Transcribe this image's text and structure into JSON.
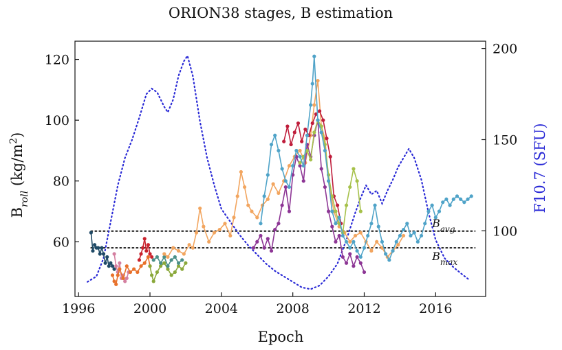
{
  "chart_data": {
    "type": "line",
    "title": "ORION38 stages, B estimation",
    "xlabel": "Epoch",
    "ylabel": "B_roll (kg/m^2)",
    "ylabel_parts": {
      "main": "B",
      "sub": "roll",
      "unit_open": " (kg/m",
      "unit_sup": "2",
      "unit_close": ")"
    },
    "y2label": "F10.7 (SFU)",
    "xlim": [
      1995.8,
      2018.8
    ],
    "ylim": [
      42,
      126
    ],
    "y2lim": [
      64,
      204
    ],
    "x_ticks": [
      1996,
      2000,
      2004,
      2008,
      2012,
      2016
    ],
    "x_tick_labels": [
      "1996",
      "2000",
      "2004",
      "2008",
      "2012",
      "2016"
    ],
    "y_ticks": [
      60,
      80,
      100,
      120
    ],
    "y_tick_labels": [
      "60",
      "80",
      "100",
      "120"
    ],
    "y2_ticks": [
      100,
      150,
      200
    ],
    "y2_tick_labels": [
      "100",
      "150",
      "200"
    ],
    "colors": {
      "f107": "#2a2ad6",
      "y2label": "#2a2ad6",
      "refline": "#111111"
    },
    "ref_lines": [
      {
        "name": "B_avg",
        "y": 63.5,
        "label_main": "B",
        "label_sub": "avg"
      },
      {
        "name": "B_max",
        "y": 58.0,
        "label_main": "B",
        "label_sub": "max"
      }
    ],
    "f107": {
      "name": "F10.7 (SFU)",
      "x": [
        1996.5,
        1997.0,
        1997.4,
        1997.8,
        1998.2,
        1998.6,
        1999.0,
        1999.4,
        1999.8,
        2000.1,
        2000.4,
        2000.8,
        2001.0,
        2001.3,
        2001.6,
        2001.9,
        2002.1,
        2002.4,
        2002.8,
        2003.2,
        2003.6,
        2004.0,
        2004.5,
        2005.0,
        2005.5,
        2006.0,
        2006.5,
        2007.0,
        2007.5,
        2008.0,
        2008.5,
        2009.0,
        2009.5,
        2010.0,
        2010.5,
        2011.0,
        2011.5,
        2011.8,
        2012.1,
        2012.4,
        2012.7,
        2013.0,
        2013.3,
        2013.6,
        2013.9,
        2014.2,
        2014.5,
        2014.8,
        2015.2,
        2015.6,
        2016.0,
        2016.5,
        2017.0,
        2017.5,
        2017.9
      ],
      "values": [
        72,
        75,
        85,
        105,
        125,
        140,
        150,
        162,
        175,
        178,
        176,
        168,
        165,
        172,
        185,
        193,
        196,
        185,
        160,
        140,
        125,
        112,
        105,
        98,
        92,
        87,
        82,
        78,
        75,
        72,
        69,
        68,
        70,
        75,
        82,
        95,
        110,
        118,
        125,
        120,
        122,
        115,
        122,
        128,
        135,
        140,
        145,
        140,
        128,
        110,
        95,
        85,
        80,
        76,
        73
      ]
    },
    "series": [
      {
        "name": "stage-dark-navy",
        "color": "#1f4a66",
        "x": [
          1996.7,
          1996.8,
          1996.9,
          1997.0,
          1997.1,
          1997.2,
          1997.3,
          1997.4,
          1997.5,
          1997.6,
          1997.7,
          1997.8,
          1997.9,
          1998.0
        ],
        "values": [
          63,
          57,
          59,
          58,
          58,
          56,
          58,
          56,
          53,
          55,
          52,
          53,
          52,
          51
        ]
      },
      {
        "name": "stage-pink",
        "color": "#d47fa0",
        "x": [
          1998.0,
          1998.1,
          1998.2,
          1998.3,
          1998.4,
          1998.5,
          1998.6,
          1998.7,
          1998.8
        ],
        "values": [
          56,
          52,
          50,
          53,
          48,
          49,
          47,
          48,
          50
        ]
      },
      {
        "name": "stage-orange",
        "color": "#e8712b",
        "x": [
          1997.9,
          1998.0,
          1998.1,
          1998.2,
          1998.3,
          1998.5,
          1998.7,
          1998.9,
          1999.1,
          1999.3,
          1999.5,
          1999.7,
          1999.9,
          2000.0
        ],
        "values": [
          49,
          47,
          46,
          49,
          51,
          48,
          52,
          50,
          51,
          50,
          52,
          53,
          55,
          52
        ]
      },
      {
        "name": "stage-red",
        "color": "#c9232d",
        "x": [
          1999.4,
          1999.5,
          1999.6,
          1999.7,
          1999.8,
          1999.9,
          2000.0,
          2000.1
        ],
        "values": [
          54,
          56,
          58,
          61,
          57,
          59,
          56,
          55
        ]
      },
      {
        "name": "stage-olive",
        "color": "#8aa83a",
        "x": [
          2000.0,
          2000.1,
          2000.2,
          2000.4,
          2000.6,
          2000.8,
          2001.0,
          2001.2,
          2001.4,
          2001.6,
          2001.8,
          2002.0
        ],
        "values": [
          52,
          49,
          47,
          50,
          52,
          53,
          51,
          49,
          50,
          52,
          51,
          53
        ]
      },
      {
        "name": "stage-teal",
        "color": "#4a8f88",
        "x": [
          2000.2,
          2000.4,
          2000.6,
          2000.8,
          2001.0,
          2001.2,
          2001.4,
          2001.6,
          2001.8
        ],
        "values": [
          54,
          55,
          53,
          55,
          52,
          54,
          55,
          53,
          54
        ]
      },
      {
        "name": "stage-peach",
        "color": "#f2a55f",
        "x": [
          2000.8,
          2001.0,
          2001.3,
          2001.6,
          2001.9,
          2002.2,
          2002.4,
          2002.6,
          2002.8,
          2003.0,
          2003.3,
          2003.6,
          2003.9,
          2004.2,
          2004.5,
          2004.7,
          2004.9,
          2005.1,
          2005.3,
          2005.5,
          2005.7,
          2006.0,
          2006.3,
          2006.6,
          2006.9,
          2007.2,
          2007.5,
          2007.8,
          2008.1,
          2008.4,
          2008.7,
          2009.0,
          2009.2,
          2009.4,
          2009.6,
          2009.8,
          2010.0,
          2010.3,
          2010.6,
          2010.9,
          2011.2,
          2011.5,
          2011.8,
          2012.1,
          2012.4,
          2012.7,
          2013.0,
          2013.3,
          2013.6,
          2013.9,
          2014.2
        ],
        "values": [
          56,
          55,
          58,
          57,
          56,
          59,
          58,
          63,
          71,
          65,
          60,
          63,
          64,
          66,
          62,
          68,
          75,
          83,
          78,
          72,
          70,
          68,
          72,
          74,
          79,
          76,
          80,
          85,
          88,
          90,
          86,
          95,
          105,
          113,
          98,
          94,
          80,
          70,
          65,
          63,
          60,
          62,
          63,
          60,
          57,
          60,
          58,
          55,
          57,
          59,
          62
        ]
      },
      {
        "name": "stage-purple",
        "color": "#8d3695",
        "x": [
          2005.8,
          2006.0,
          2006.2,
          2006.4,
          2006.6,
          2006.8,
          2007.0,
          2007.2,
          2007.4,
          2007.6,
          2007.8,
          2008.0,
          2008.2,
          2008.4,
          2008.6,
          2008.8,
          2009.0,
          2009.2,
          2009.4,
          2009.6,
          2009.8,
          2010.0,
          2010.2,
          2010.4,
          2010.6,
          2010.8,
          2011.0,
          2011.2,
          2011.4,
          2011.6,
          2011.8,
          2012.0
        ],
        "values": [
          58,
          60,
          62,
          58,
          61,
          57,
          64,
          66,
          72,
          78,
          70,
          82,
          88,
          85,
          80,
          92,
          88,
          95,
          100,
          84,
          78,
          70,
          65,
          60,
          62,
          55,
          53,
          56,
          52,
          55,
          53,
          50
        ]
      },
      {
        "name": "stage-crimson",
        "color": "#bf1d3b",
        "x": [
          2007.5,
          2007.7,
          2007.9,
          2008.1,
          2008.3,
          2008.5,
          2008.7,
          2008.9,
          2009.1,
          2009.3,
          2009.5,
          2009.7,
          2009.9,
          2010.1,
          2010.3,
          2010.5,
          2010.7
        ],
        "values": [
          93,
          98,
          92,
          96,
          99,
          93,
          97,
          95,
          99,
          102,
          103,
          100,
          94,
          88,
          75,
          72,
          66
        ]
      },
      {
        "name": "stage-light-green",
        "color": "#a6c14a",
        "x": [
          2008.4,
          2008.6,
          2008.8,
          2009.0,
          2009.2,
          2009.4,
          2009.6,
          2009.8,
          2010.0,
          2010.2,
          2010.4,
          2010.6,
          2010.8,
          2011.0,
          2011.2,
          2011.4,
          2011.6,
          2011.8
        ],
        "values": [
          86,
          88,
          90,
          87,
          96,
          100,
          98,
          92,
          82,
          75,
          70,
          66,
          63,
          72,
          78,
          84,
          80,
          70
        ]
      },
      {
        "name": "stage-sky-blue",
        "color": "#4fa3c8",
        "x": [
          2006.2,
          2006.4,
          2006.6,
          2006.8,
          2007.0,
          2007.2,
          2007.4,
          2007.6,
          2007.8,
          2008.0,
          2008.2,
          2008.4,
          2008.6,
          2008.8,
          2009.0,
          2009.1,
          2009.2,
          2009.4,
          2009.6,
          2009.8,
          2010.0,
          2010.2,
          2010.4,
          2010.6,
          2010.8,
          2011.0,
          2011.2,
          2011.4,
          2011.6,
          2011.8,
          2012.0,
          2012.2,
          2012.4,
          2012.6,
          2012.8,
          2013.0,
          2013.2,
          2013.4,
          2013.6,
          2013.8,
          2014.0,
          2014.2,
          2014.4,
          2014.6,
          2014.8,
          2015.0,
          2015.2,
          2015.4,
          2015.6,
          2015.8,
          2016.0,
          2016.2,
          2016.4,
          2016.6,
          2016.8,
          2017.0,
          2017.2,
          2017.4,
          2017.6,
          2017.8,
          2018.0
        ],
        "values": [
          66,
          75,
          82,
          92,
          95,
          90,
          84,
          80,
          78,
          85,
          90,
          88,
          85,
          95,
          105,
          112,
          121,
          100,
          96,
          90,
          80,
          70,
          66,
          68,
          62,
          60,
          58,
          60,
          57,
          55,
          58,
          62,
          66,
          72,
          65,
          60,
          56,
          54,
          57,
          60,
          62,
          64,
          66,
          62,
          63,
          60,
          62,
          66,
          70,
          72,
          68,
          70,
          73,
          74,
          72,
          74,
          75,
          74,
          73,
          74,
          75
        ]
      }
    ]
  }
}
